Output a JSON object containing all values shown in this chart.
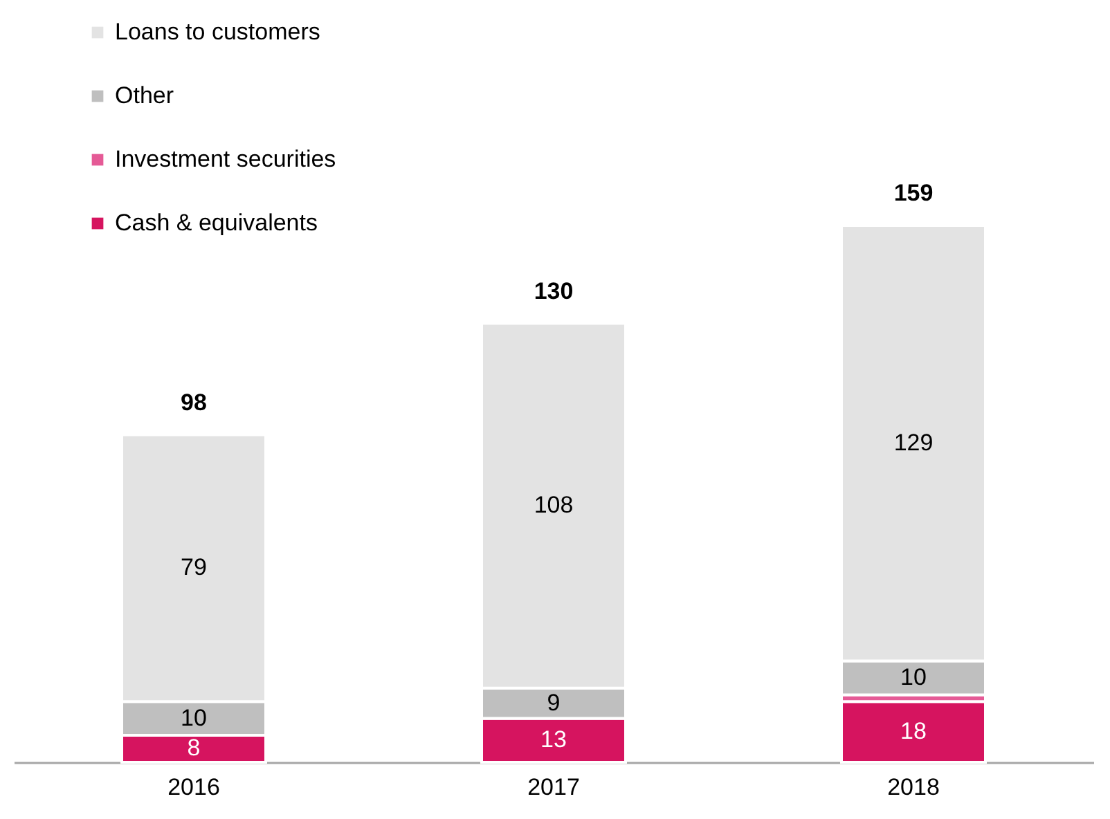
{
  "chart_data": {
    "type": "bar",
    "stacked": true,
    "categories": [
      "2016",
      "2017",
      "2018"
    ],
    "series": [
      {
        "name": "Cash & equivalents",
        "color": "#d6145f",
        "values": [
          8,
          13,
          18
        ],
        "value_labels": [
          "8",
          "13",
          "18"
        ]
      },
      {
        "name": "Investment securities",
        "color": "#e55a96",
        "values": [
          0,
          0,
          2
        ],
        "value_labels": [
          null,
          null,
          null
        ]
      },
      {
        "name": "Other",
        "color": "#bfbfbf",
        "values": [
          10,
          9,
          10
        ],
        "value_labels": [
          "10",
          "9",
          "10"
        ]
      },
      {
        "name": "Loans to customers",
        "color": "#e3e3e3",
        "values": [
          79,
          108,
          129
        ],
        "value_labels": [
          "79",
          "108",
          "129"
        ]
      }
    ],
    "totals": [
      "98",
      "130",
      "159"
    ],
    "legend": "top left"
  }
}
